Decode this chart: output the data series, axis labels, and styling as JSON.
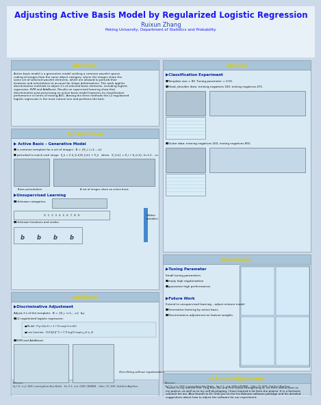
{
  "title": "Adjusting Active Basis Model by Regularized Logistic Regression",
  "author": "Ruixun Zhang",
  "affiliation": "Peking University, Department of Statistics and Probability",
  "title_color": "#1a1aee",
  "author_color": "#2244aa",
  "affiliation_color": "#1a1aee",
  "bg_color": "#ccd9e8",
  "header_bg": "#a8c4d8",
  "section_title_color": "#ddcc00",
  "inner_box_bg": "#daeaf4",
  "border_color": "#8899aa",
  "text_color": "#111111",
  "highlight_color": "#002299",
  "white_box_bg": "#e8f2f8",
  "abstract_title": "Abstract",
  "abstract_text": "Active basis model is a generative model seeking a common wavelet sparse\ncoding of images from the same object category, where the images share the\nsame set of selected wavelet elements, which are allowed to perturb their\nlocations and orientations to account for shape deformations. This work applies\ndiscriminative methods to adjust λ's of selected basis elements, including logistic\nregression, SVM and AdaBoost. Results on supervised learning show that\ndiscriminative post-processing on active basis model improves its classification\nperformance in terms of testing AUC. Among the three methods the L2 regularized\nlogistic regression is the most natural one and performs the best.",
  "intro_title": "Introduction",
  "results_title": "Results",
  "methods_title": "Methods",
  "discussion_title": "Discussion",
  "acknowledgements_title": "Acknowledgements",
  "intro_sub1": "▶ Active Basis – Generative Model",
  "intro_b1": "■ a common template for a set of images:  B = {θ_i, i=1,...,n}",
  "intro_b2": "■ perturbed to match each image:  ξ_k = Σ d_{i,k}θ_{i,k} + V_k   where   θ_{i,k} = θ_i + δ_{i,k}, k=1,2,...,m",
  "intro_caption1": "Basis perturbation",
  "intro_caption2": "A set of images share an active basis",
  "intro_sub2": "▶Unsupervised Learning",
  "intro_b3": "■Unknown categories:",
  "intro_b4": "■Unknown locations and scales:",
  "intro_hidden": "Hidden\nvariables",
  "results_sub1": "▶Classification Experiment",
  "results_b1": "■Template size = 80. Tuning parameter = 0.01.",
  "results_b2": "■Head_shoulder data: training negatives 160, testing negatives 471.",
  "results_b3": "■Guitar data: training negatives 160, testing negatives 855.",
  "methods_sub1": "▶Discriminative Adjustment",
  "methods_t1": "Adjust λ's of the template:  B = {θ_i, i=1,...,n}  by:",
  "methods_b1": "■L2 regularized logistic regression:",
  "methods_model_label": "■Model:",
  "methods_model_eq": "P(y=1|x;λ) = 1 / (1+exp(-λᵀx+b))",
  "methods_loss_label": "■Loss function:",
  "methods_loss_eq": "(1/2)||λ||^2 + C Σ log(1+exp(-y_iλᵀx_i))",
  "methods_b2": "■SVM and AdaBoost:",
  "methods_note": "Over-fitting without regularization.",
  "disc_sub1": "▶Tuning Parameter",
  "disc_t1": "Small tuning parameters",
  "disc_b1": "■imply high regularization",
  "disc_b2": "■guarantee high performances",
  "disc_sub2": "▶Future Work",
  "disc_t2": "Extend to unsupervised learning – adjust mixture model",
  "disc_b3": "■Generative learning by active basis",
  "disc_b4": "■Discriminative adjustment on feature weights",
  "ack_text": "Thanks to my mentor Prof. Ying Nian Wu and PhD fellow Zhangzhang Si, for their instructions to\nmy project, as well as to my self developing. I have learned a lot from the project. It is a fantastic\nsummer for me. Also thanks to Dr. Chih-Jen Lin for his liblinear software package and his detailed\nsuggestions about how to adjust the software for our experiment.",
  "ref_text": "References\nHy, F. B., et al. (2006). Learning Active Basis Models.   Fan, R. E., et al. (2008). LIBLINEAR.   Collins, T.B. (2001). Real-Boost Algorithms."
}
